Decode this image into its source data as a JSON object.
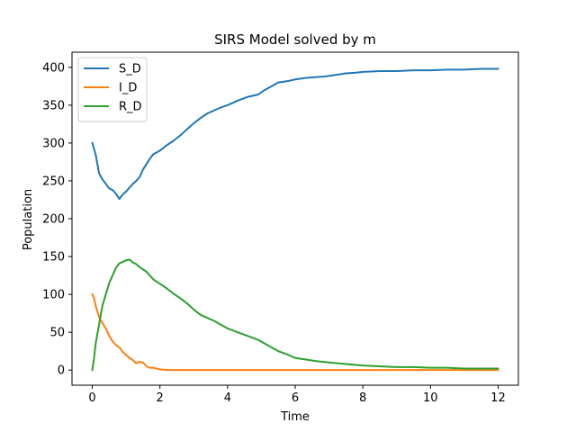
{
  "chart_data": {
    "type": "line",
    "title": "SIRS Model solved by m",
    "xlabel": "Time",
    "ylabel": "Population",
    "xlim": [
      -0.6,
      12.6
    ],
    "ylim": [
      -20,
      420
    ],
    "xticks": [
      0,
      2,
      4,
      6,
      8,
      10,
      12
    ],
    "yticks": [
      0,
      50,
      100,
      150,
      200,
      250,
      300,
      350,
      400
    ],
    "grid": false,
    "legend_position": "top-left",
    "series": [
      {
        "name": "S_D",
        "color": "#1f77b4",
        "x": [
          0,
          0.1,
          0.2,
          0.3,
          0.4,
          0.5,
          0.6,
          0.7,
          0.8,
          0.9,
          1.0,
          1.1,
          1.2,
          1.3,
          1.4,
          1.5,
          1.6,
          1.7,
          1.8,
          2.0,
          2.2,
          2.4,
          2.6,
          2.8,
          3.0,
          3.2,
          3.4,
          3.6,
          3.8,
          4.0,
          4.3,
          4.6,
          4.9,
          5.1,
          5.3,
          5.5,
          5.8,
          6.0,
          6.3,
          6.6,
          6.9,
          7.2,
          7.5,
          7.8,
          8.0,
          8.5,
          9.0,
          9.5,
          10.0,
          10.5,
          11.0,
          11.5,
          12.0
        ],
        "y": [
          300,
          285,
          260,
          252,
          246,
          240,
          238,
          233,
          226,
          232,
          236,
          241,
          246,
          250,
          255,
          265,
          272,
          279,
          285,
          290,
          297,
          303,
          310,
          318,
          326,
          333,
          339,
          343,
          347,
          350,
          356,
          361,
          364,
          370,
          375,
          380,
          382,
          384,
          386,
          387,
          388,
          390,
          392,
          393,
          394,
          395,
          395,
          396,
          396,
          397,
          397,
          398,
          398
        ]
      },
      {
        "name": "I_D",
        "color": "#ff7f0e",
        "x": [
          0,
          0.05,
          0.1,
          0.2,
          0.3,
          0.4,
          0.5,
          0.6,
          0.7,
          0.8,
          0.9,
          1.0,
          1.1,
          1.2,
          1.3,
          1.4,
          1.5,
          1.6,
          1.7,
          1.8,
          1.9,
          2.0,
          2.2,
          2.5,
          3.0,
          4.0,
          6.0,
          8.0,
          10.0,
          12.0
        ],
        "y": [
          100,
          95,
          85,
          70,
          62,
          55,
          45,
          38,
          33,
          30,
          24,
          20,
          16,
          13,
          9,
          11,
          10,
          5,
          3,
          3,
          2,
          1,
          0,
          0,
          0,
          0,
          0,
          0,
          0,
          0
        ]
      },
      {
        "name": "R_D",
        "color": "#2ca02c",
        "x": [
          0,
          0.05,
          0.1,
          0.2,
          0.3,
          0.4,
          0.5,
          0.6,
          0.7,
          0.8,
          0.9,
          1.0,
          1.1,
          1.2,
          1.3,
          1.4,
          1.5,
          1.6,
          1.7,
          1.8,
          2.0,
          2.2,
          2.4,
          2.6,
          2.8,
          3.0,
          3.2,
          3.4,
          3.6,
          3.8,
          4.0,
          4.3,
          4.6,
          4.9,
          5.1,
          5.3,
          5.5,
          5.8,
          6.0,
          6.3,
          6.6,
          7.0,
          7.5,
          8.0,
          8.5,
          9.0,
          9.5,
          10.0,
          10.5,
          11.0,
          11.5,
          12.0
        ],
        "y": [
          0,
          15,
          35,
          60,
          85,
          100,
          115,
          125,
          135,
          141,
          143,
          145,
          146,
          142,
          140,
          136,
          133,
          130,
          125,
          120,
          114,
          108,
          101,
          95,
          88,
          80,
          73,
          69,
          65,
          60,
          55,
          50,
          45,
          40,
          35,
          30,
          25,
          20,
          16,
          14,
          12,
          10,
          8,
          6,
          5,
          4,
          4,
          3,
          3,
          2,
          2,
          2
        ]
      }
    ]
  }
}
